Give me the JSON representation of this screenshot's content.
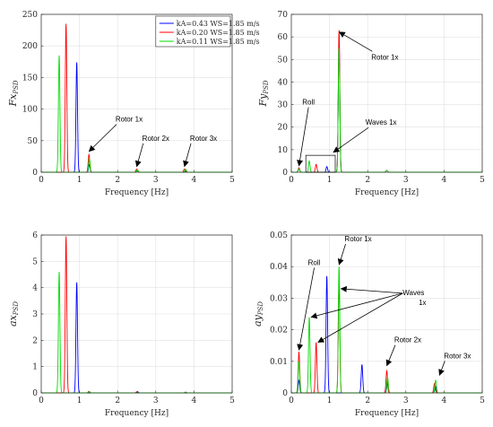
{
  "legend": [
    "kA=0.43 WS=1.85 m/s",
    "kA=0.20 WS=1.85 m/s",
    "kA=0.11 WS=1.85 m/s"
  ],
  "colors": [
    "#0000ff",
    "#ff0000",
    "#00dd00"
  ],
  "chart_data": [
    {
      "id": "fx",
      "type": "line",
      "ylabel_main": "Fx",
      "ylabel_sub": "PSD",
      "xlabel": "Frequency [Hz]",
      "xlim": [
        0,
        5
      ],
      "ylim": [
        0,
        250
      ],
      "xticks": [
        0,
        1,
        2,
        3,
        4,
        5
      ],
      "yticks": [
        0,
        50,
        100,
        150,
        200,
        250
      ],
      "grid": true,
      "legend_position": "top-right",
      "series": [
        {
          "name": "kA=0.43 WS=1.85 m/s",
          "peaks": [
            [
              0.93,
              174
            ],
            [
              1.26,
              12
            ],
            [
              2.52,
              3
            ],
            [
              3.78,
              2
            ]
          ]
        },
        {
          "name": "kA=0.20 WS=1.85 m/s",
          "peaks": [
            [
              0.65,
              235
            ],
            [
              1.25,
              28
            ],
            [
              2.5,
              5
            ],
            [
              3.75,
              5
            ]
          ]
        },
        {
          "name": "kA=0.11 WS=1.85 m/s",
          "peaks": [
            [
              0.47,
              185
            ],
            [
              1.26,
              22
            ],
            [
              2.52,
              4
            ],
            [
              3.78,
              5
            ]
          ]
        }
      ],
      "annotations": [
        {
          "text": "Rotor 1x",
          "x": 1.25,
          "y": 30,
          "tx": 2.3,
          "ty": 80
        },
        {
          "text": "Rotor 2x",
          "x": 2.5,
          "y": 6,
          "tx": 3.0,
          "ty": 50
        },
        {
          "text": "Rotor 3x",
          "x": 3.75,
          "y": 6,
          "tx": 4.25,
          "ty": 50
        }
      ]
    },
    {
      "id": "fy",
      "type": "line",
      "ylabel_main": "Fy",
      "ylabel_sub": "PSD",
      "xlabel": "Frequency [Hz]",
      "xlim": [
        0,
        5
      ],
      "ylim": [
        0,
        70
      ],
      "xticks": [
        0,
        1,
        2,
        3,
        4,
        5
      ],
      "yticks": [
        0,
        10,
        20,
        30,
        40,
        50,
        60,
        70
      ],
      "grid": true,
      "series": [
        {
          "name": "kA=0.43 WS=1.85 m/s",
          "peaks": [
            [
              0.2,
              1.5
            ],
            [
              0.93,
              2.5
            ],
            [
              1.25,
              60
            ],
            [
              2.5,
              0.8
            ]
          ]
        },
        {
          "name": "kA=0.20 WS=1.85 m/s",
          "peaks": [
            [
              0.2,
              2
            ],
            [
              0.65,
              3.5
            ],
            [
              1.25,
              63
            ],
            [
              2.5,
              0.8
            ]
          ]
        },
        {
          "name": "kA=0.11 WS=1.85 m/s",
          "peaks": [
            [
              0.2,
              1.5
            ],
            [
              0.47,
              5
            ],
            [
              1.25,
              55
            ],
            [
              2.5,
              0.8
            ]
          ]
        }
      ],
      "annotations": [
        {
          "text": "Rotor 1x",
          "x": 1.25,
          "y": 63,
          "tx": 2.45,
          "ty": 50
        },
        {
          "text": "Roll",
          "x": 0.2,
          "y": 2,
          "tx": 0.45,
          "ty": 30
        },
        {
          "text": "Waves 1x",
          "x": 1.1,
          "y": 8,
          "tx": 2.35,
          "ty": 21
        }
      ]
    },
    {
      "id": "ax",
      "type": "line",
      "ylabel_main": "ax",
      "ylabel_sub": "PSD",
      "xlabel": "Frequency [Hz]",
      "xlim": [
        0,
        5
      ],
      "ylim": [
        0,
        6
      ],
      "xticks": [
        0,
        1,
        2,
        3,
        4,
        5
      ],
      "yticks": [
        0,
        1,
        2,
        3,
        4,
        5,
        6
      ],
      "grid": true,
      "series": [
        {
          "name": "kA=0.43 WS=1.85 m/s",
          "peaks": [
            [
              0.93,
              4.2
            ],
            [
              2.52,
              0.05
            ],
            [
              3.78,
              0.03
            ]
          ]
        },
        {
          "name": "kA=0.20 WS=1.85 m/s",
          "peaks": [
            [
              0.65,
              5.95
            ],
            [
              1.25,
              0.06
            ],
            [
              2.5,
              0.04
            ]
          ]
        },
        {
          "name": "kA=0.11 WS=1.85 m/s",
          "peaks": [
            [
              0.47,
              4.6
            ],
            [
              1.26,
              0.05
            ],
            [
              3.78,
              0.03
            ]
          ]
        }
      ],
      "annotations": []
    },
    {
      "id": "ay",
      "type": "line",
      "ylabel_main": "ay",
      "ylabel_sub": "PSD",
      "xlabel": "Frequency [Hz]",
      "xlim": [
        0,
        5
      ],
      "ylim": [
        0,
        0.05
      ],
      "xticks": [
        0,
        1,
        2,
        3,
        4,
        5
      ],
      "yticks": [
        0,
        0.01,
        0.02,
        0.03,
        0.04,
        0.05
      ],
      "ytick_labels": [
        "0",
        "0.01",
        "0.02",
        "0.03",
        "0.04",
        "0.05"
      ],
      "grid": true,
      "series": [
        {
          "name": "kA=0.43 WS=1.85 m/s",
          "peaks": [
            [
              0.2,
              0.004
            ],
            [
              0.93,
              0.037
            ],
            [
              1.85,
              0.009
            ],
            [
              2.52,
              0.003
            ],
            [
              3.78,
              0.002
            ]
          ]
        },
        {
          "name": "kA=0.20 WS=1.85 m/s",
          "peaks": [
            [
              0.2,
              0.013
            ],
            [
              0.65,
              0.016
            ],
            [
              1.25,
              0.035
            ],
            [
              2.5,
              0.007
            ],
            [
              3.75,
              0.003
            ]
          ]
        },
        {
          "name": "kA=0.11 WS=1.85 m/s",
          "peaks": [
            [
              0.2,
              0.01
            ],
            [
              0.47,
              0.024
            ],
            [
              1.25,
              0.04
            ],
            [
              2.52,
              0.005
            ],
            [
              3.78,
              0.004
            ]
          ]
        }
      ],
      "annotations": [
        {
          "text": "Rotor 1x",
          "x": 1.25,
          "y": 0.04,
          "tx": 1.75,
          "ty": 0.048
        },
        {
          "text": "Roll",
          "x": 0.2,
          "y": 0.013,
          "tx": 0.6,
          "ty": 0.0405
        },
        {
          "text": "Waves",
          "x": 0.93,
          "y": 0.037,
          "tx": 3.2,
          "ty": 0.031
        },
        {
          "text": "Rotor 2x",
          "x": 2.5,
          "y": 0.008,
          "tx": 3.05,
          "ty": 0.016
        },
        {
          "text": "Rotor 3x",
          "x": 3.88,
          "y": 0.005,
          "tx": 4.35,
          "ty": 0.011
        }
      ],
      "waves_arrows": [
        [
          0.47,
          0.024
        ],
        [
          1.25,
          0.033
        ],
        [
          0.65,
          0.016
        ]
      ],
      "waves_sub": "1x"
    }
  ]
}
